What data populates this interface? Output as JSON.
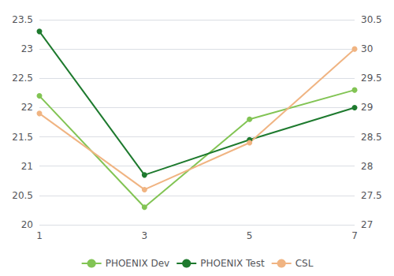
{
  "chart_data": {
    "type": "line",
    "x": [
      1,
      3,
      5,
      7
    ],
    "xlim": [
      1,
      7
    ],
    "xticks": [
      1,
      3,
      5,
      7
    ],
    "ylim": [
      20,
      23.5
    ],
    "yticks": [
      20,
      20.5,
      21,
      21.5,
      22,
      22.5,
      23,
      23.5
    ],
    "y2lim": [
      27,
      30.5
    ],
    "y2ticks": [
      27,
      27.5,
      28,
      28.5,
      29,
      29.5,
      30,
      30.5
    ],
    "grid": true,
    "legend": "bottom",
    "marker": "circle",
    "series": [
      {
        "name": "PHOENIX Dev",
        "color": "#82c454",
        "values": [
          22.2,
          20.3,
          21.8,
          22.3
        ]
      },
      {
        "name": "PHOENIX Test",
        "color": "#1e7a2e",
        "values": [
          23.3,
          20.85,
          21.45,
          22.0
        ]
      },
      {
        "name": "CSL",
        "color": "#f0b482",
        "values": [
          28.9,
          27.6,
          28.4,
          30.0
        ],
        "axis": "y2"
      }
    ]
  }
}
